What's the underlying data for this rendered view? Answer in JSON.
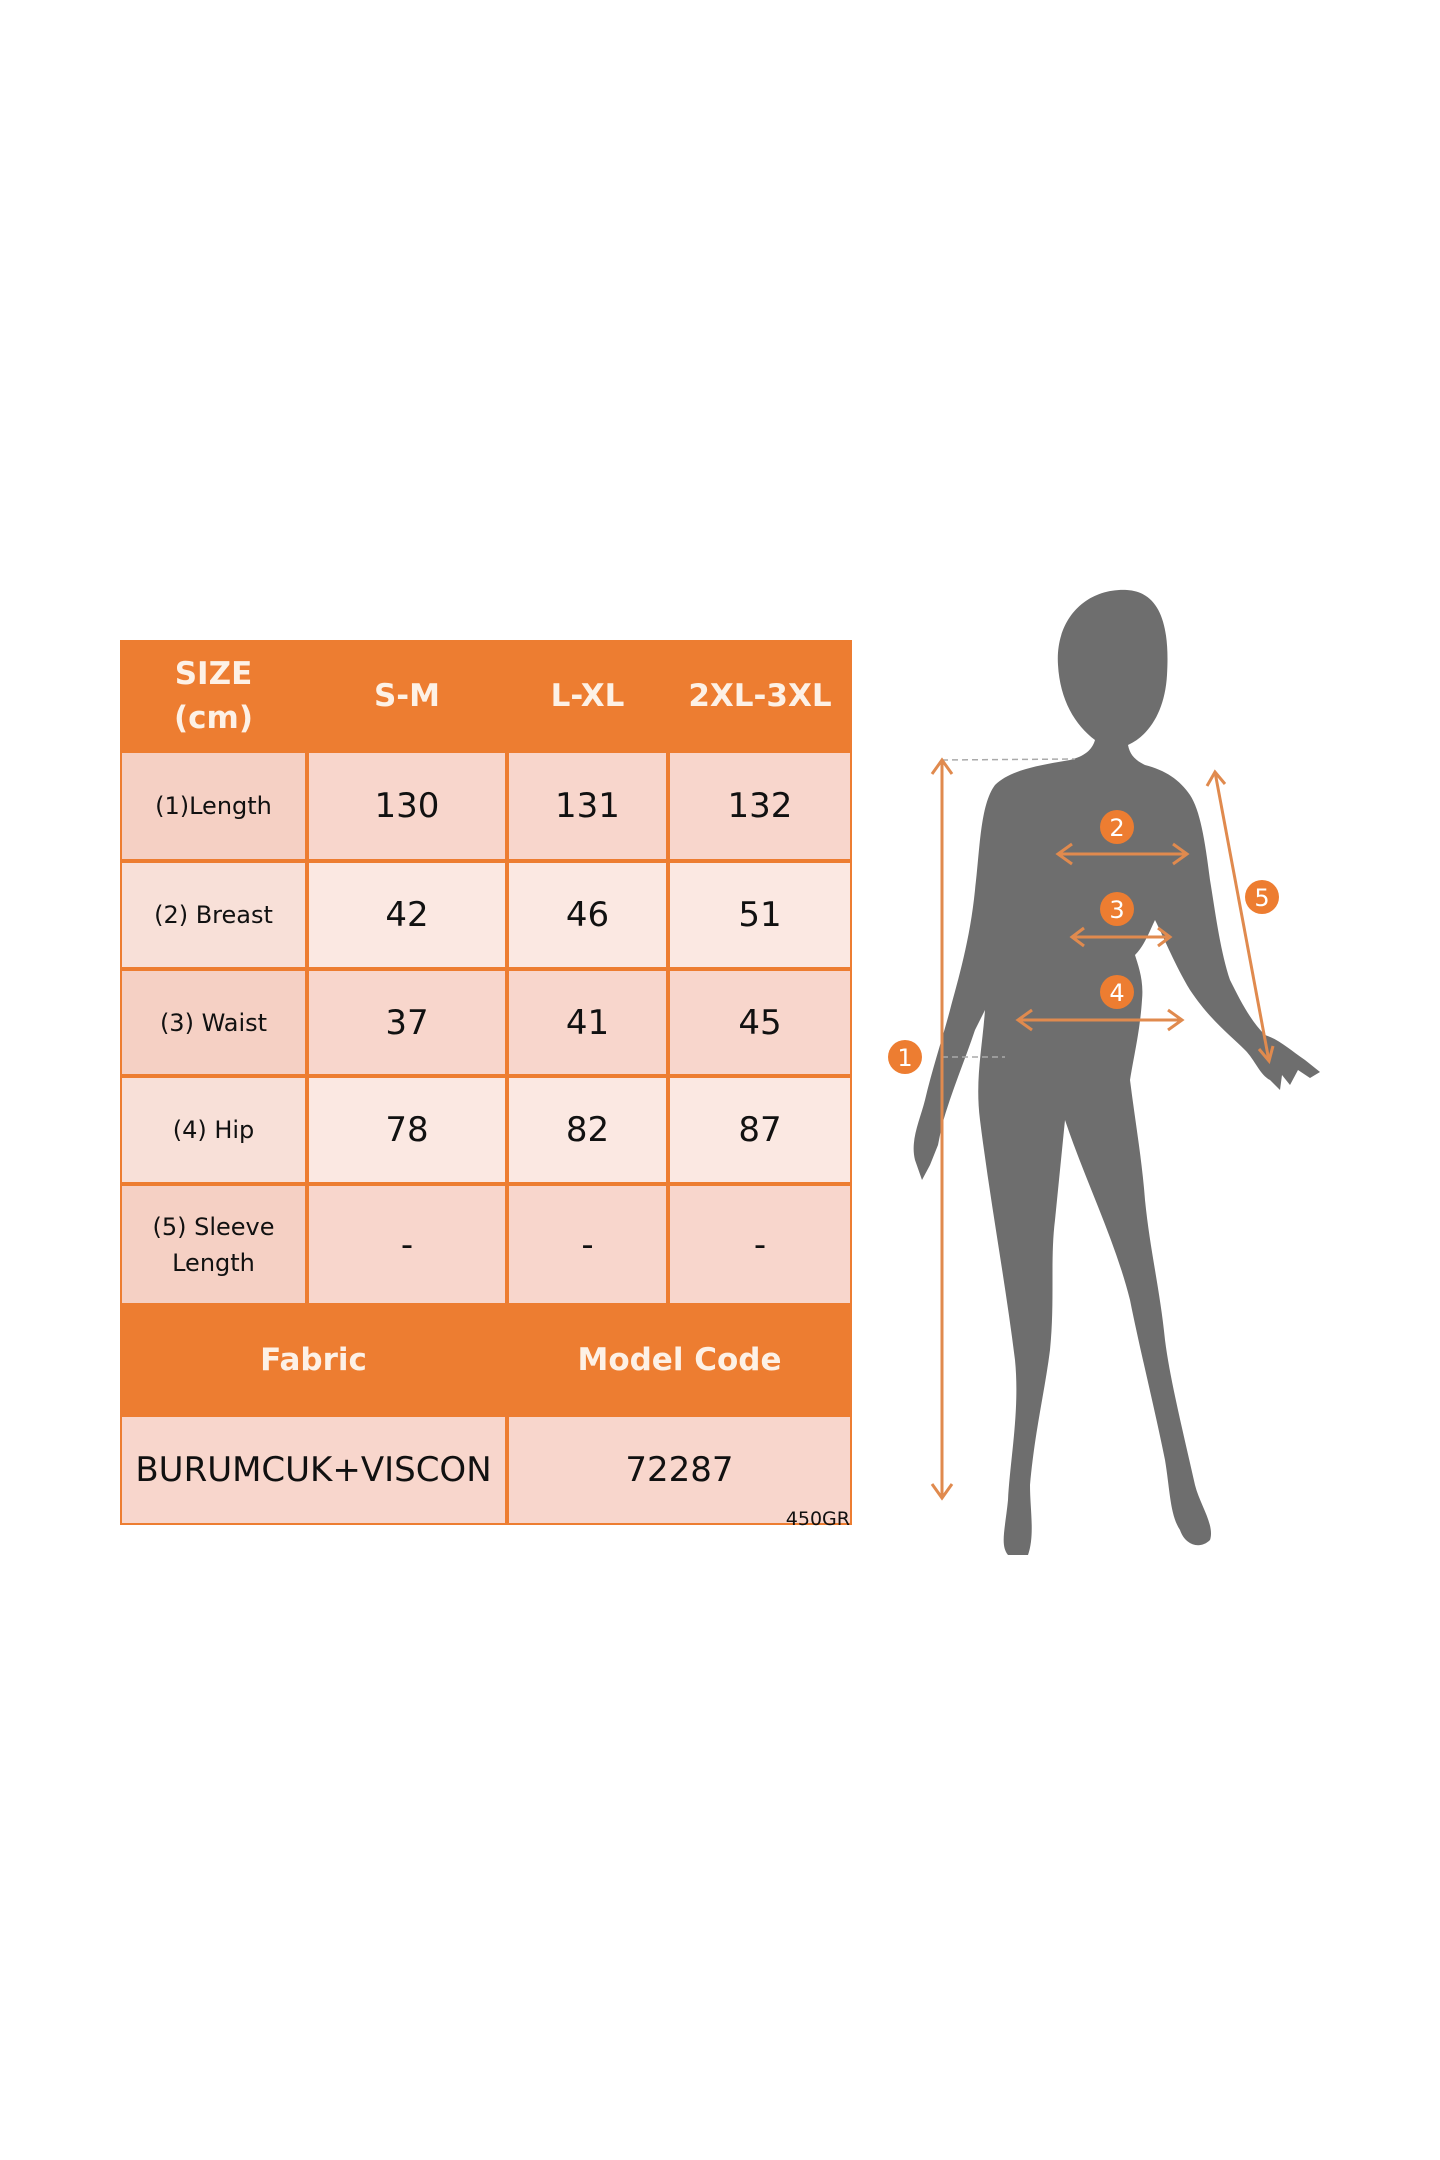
{
  "table": {
    "header": [
      "SIZE\n(cm)",
      "S-M",
      "L-XL",
      "2XL-3XL"
    ],
    "rows": [
      {
        "label": "(1)Length",
        "values": [
          "130",
          "131",
          "132"
        ]
      },
      {
        "label": "(2) Breast",
        "values": [
          "42",
          "46",
          "51"
        ]
      },
      {
        "label": "(3) Waist",
        "values": [
          "37",
          "41",
          "45"
        ]
      },
      {
        "label": "(4) Hip",
        "values": [
          "78",
          "82",
          "87"
        ]
      },
      {
        "label": "(5) Sleeve\nLength",
        "values": [
          "-",
          "-",
          "-"
        ]
      }
    ],
    "footer_header": [
      "Fabric",
      "Model Code"
    ],
    "footer_values": [
      "BURUMCUK+VISCON",
      "72287"
    ],
    "weight_note": "450GR"
  },
  "figure": {
    "markers": [
      "1",
      "2",
      "3",
      "4",
      "5"
    ],
    "accent_color": "#ed7d31",
    "silhouette_color": "#6e6e6e"
  },
  "colors": {
    "header": "#ed7d31",
    "row_dark": "#f8d6cc",
    "row_light": "#fbe8e2"
  }
}
